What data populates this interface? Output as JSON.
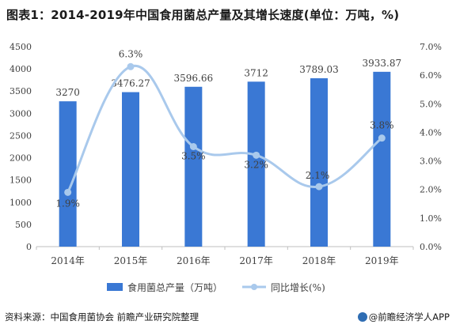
{
  "title": "图表1：2014-2019年中国食用菌总产量及其增长速度(单位：万吨，%)",
  "footer": {
    "source": "资料来源：中国食用菌协会 前瞻产业研究院整理",
    "brand": "@前瞻经济学人APP"
  },
  "colors": {
    "bar": "#3a78d4",
    "line": "#a9c9ec",
    "marker": "#a9c9ec",
    "axis": "#bfbfbf"
  },
  "chart_data": {
    "type": "bar",
    "categories": [
      "2014年",
      "2015年",
      "2016年",
      "2017年",
      "2018年",
      "2019年"
    ],
    "series": [
      {
        "name": "食用菌总产量（万吨）",
        "type": "bar",
        "axis": "left",
        "values": [
          3270,
          3476.27,
          3596.66,
          3712,
          3789.03,
          3933.87
        ],
        "labels": [
          "3270",
          "3476.27",
          "3596.66",
          "3712",
          "3789.03",
          "3933.87"
        ]
      },
      {
        "name": "同比增长(%)",
        "type": "line",
        "axis": "right",
        "values": [
          1.9,
          6.3,
          3.5,
          3.2,
          2.1,
          3.8
        ],
        "labels": [
          "1.9%",
          "6.3%",
          "3.5%",
          "3.2%",
          "2.1%",
          "3.8%"
        ]
      }
    ],
    "y_left": {
      "ylim": [
        0,
        4500
      ],
      "ticks": [
        "0",
        "500",
        "1000",
        "1500",
        "2000",
        "2500",
        "3000",
        "3500",
        "4000",
        "4500"
      ]
    },
    "y_right": {
      "ylim": [
        0,
        7
      ],
      "ticks": [
        "0.0%",
        "1.0%",
        "2.0%",
        "3.0%",
        "4.0%",
        "5.0%",
        "6.0%",
        "7.0%"
      ]
    },
    "grid": false,
    "legend": "bottom"
  }
}
